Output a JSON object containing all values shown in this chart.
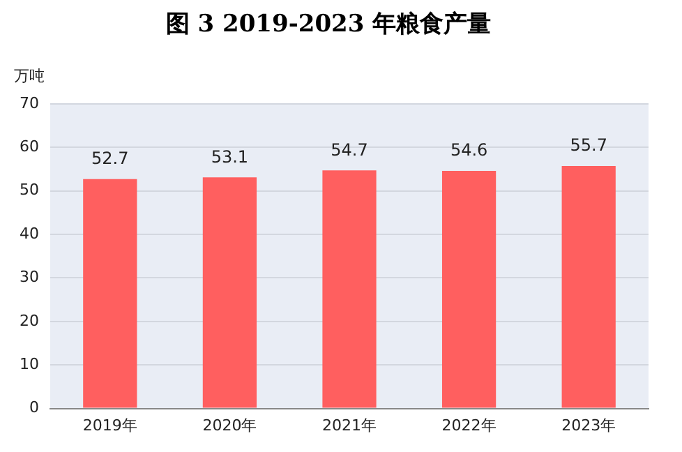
{
  "chart_data": {
    "type": "bar",
    "title": "图 3 2019-2023 年粮食产量",
    "ylabel": "万吨",
    "categories": [
      "2019年",
      "2020年",
      "2021年",
      "2022年",
      "2023年"
    ],
    "values": [
      52.7,
      53.1,
      54.7,
      54.6,
      55.7
    ],
    "color": "#ff5f5f",
    "ylim": [
      0,
      70
    ],
    "yticks": [
      0,
      10,
      20,
      30,
      40,
      50,
      60,
      70
    ],
    "grid": "y",
    "data_labels": true,
    "legend": false
  }
}
